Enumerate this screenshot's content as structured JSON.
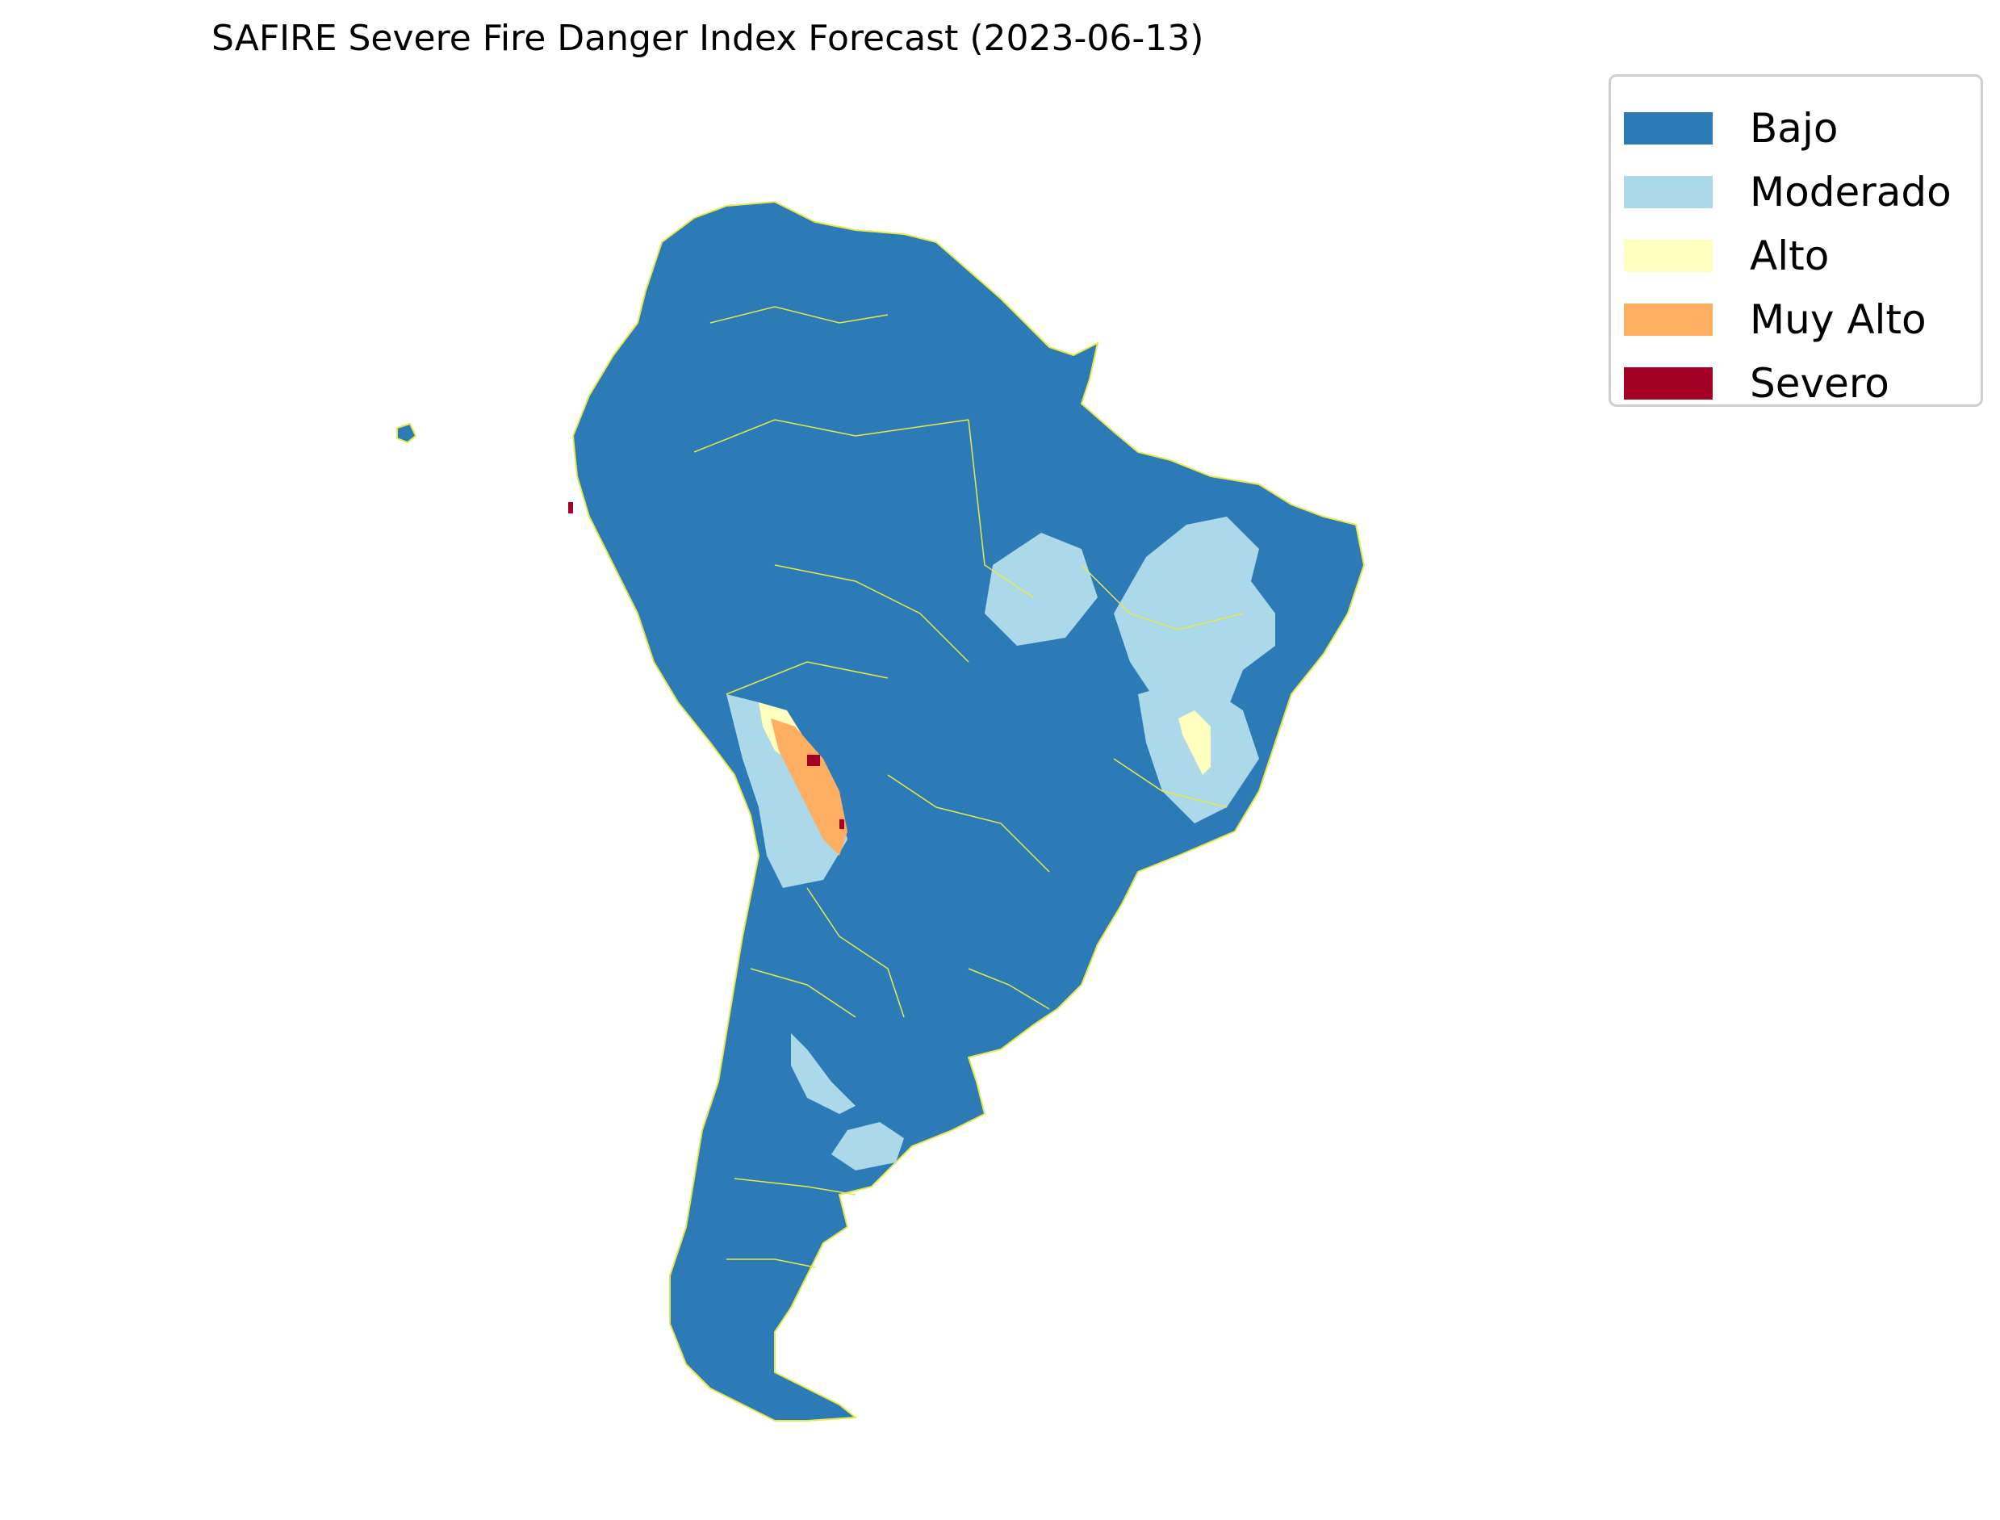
{
  "title": "SAFIRE Severe Fire Danger Index Forecast (2023-06-13)",
  "legend": {
    "placement": "upper-right",
    "items": [
      {
        "label": "Bajo",
        "color": "#2c7bb6"
      },
      {
        "label": "Moderado",
        "color": "#abd9e9"
      },
      {
        "label": "Alto",
        "color": "#ffffbf"
      },
      {
        "label": "Muy Alto",
        "color": "#fdae61"
      },
      {
        "label": "Severo",
        "color": "#a50026"
      }
    ]
  },
  "map": {
    "region": "South America",
    "border_color": "#e8e84a",
    "background": "#ffffff"
  }
}
